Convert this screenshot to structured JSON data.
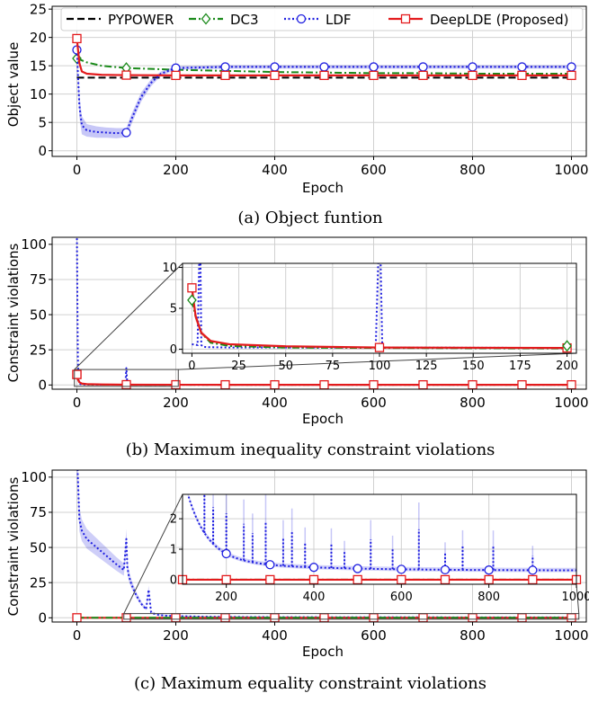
{
  "chart_data": [
    {
      "type": "line",
      "xlabel": "Epoch",
      "ylabel": "Object value",
      "xlim": [
        -50,
        1030
      ],
      "ylim": [
        -1,
        25.5
      ],
      "xticks": [
        0,
        200,
        400,
        600,
        800,
        1000
      ],
      "yticks": [
        0,
        5,
        10,
        15,
        20,
        25
      ],
      "grid": true,
      "legend_position": "top",
      "caption": "(a) Object funtion",
      "series": [
        {
          "name": "PYPOWER",
          "color": "#000000",
          "style": "dashed",
          "marker": "none",
          "x": [
            0,
            1000
          ],
          "y": [
            12.9,
            12.9
          ]
        },
        {
          "name": "DC3",
          "color": "#1a8a1a",
          "style": "dashdot",
          "marker": "diamond",
          "x": [
            0,
            20,
            50,
            100,
            200,
            300,
            400,
            500,
            600,
            700,
            800,
            900,
            1000
          ],
          "y": [
            16.3,
            15.6,
            15.0,
            14.6,
            14.3,
            14.1,
            13.9,
            13.8,
            13.7,
            13.7,
            13.6,
            13.6,
            13.6
          ]
        },
        {
          "name": "LDF",
          "color": "#1f1fe0",
          "style": "dotted",
          "marker": "circle",
          "x": [
            0,
            5,
            10,
            20,
            40,
            60,
            80,
            100,
            110,
            130,
            150,
            170,
            200,
            300,
            400,
            500,
            600,
            700,
            800,
            900,
            1000
          ],
          "y": [
            17.8,
            8.0,
            4.5,
            3.6,
            3.3,
            3.2,
            3.1,
            3.2,
            5.5,
            9.5,
            12.0,
            13.6,
            14.6,
            14.8,
            14.8,
            14.8,
            14.8,
            14.8,
            14.8,
            14.8,
            14.8
          ],
          "band": [
            0.9,
            2.0,
            1.6,
            1.1,
            1.0,
            0.9,
            0.9,
            0.8,
            0.9,
            0.8,
            0.6,
            0.4,
            0.3,
            0.3,
            0.3,
            0.3,
            0.3,
            0.3,
            0.3,
            0.3,
            0.3
          ]
        },
        {
          "name": "DeepLDE (Proposed)",
          "color": "#e31a1c",
          "style": "solid",
          "marker": "square",
          "x": [
            0,
            5,
            10,
            20,
            50,
            100,
            200,
            300,
            400,
            500,
            600,
            700,
            800,
            900,
            1000
          ],
          "y": [
            19.8,
            15.5,
            14.0,
            13.6,
            13.4,
            13.35,
            13.3,
            13.3,
            13.3,
            13.3,
            13.3,
            13.3,
            13.3,
            13.3,
            13.3
          ]
        }
      ]
    },
    {
      "type": "line",
      "xlabel": "Epoch",
      "ylabel": "Constraint violations",
      "xlim": [
        -50,
        1030
      ],
      "ylim": [
        -3,
        105
      ],
      "xticks": [
        0,
        200,
        400,
        600,
        800,
        1000
      ],
      "yticks": [
        0,
        25,
        50,
        75,
        100
      ],
      "grid": true,
      "caption": "(b) Maximum inequality constraint violations",
      "series": [
        {
          "name": "LDF",
          "color": "#1f1fe0",
          "style": "dotted",
          "x": [
            0,
            1,
            2,
            3,
            4,
            5,
            8,
            15,
            30,
            60,
            98,
            100,
            102,
            105,
            150,
            200,
            400,
            600,
            800,
            1000
          ],
          "y": [
            110,
            60,
            20,
            8,
            3,
            1,
            0.5,
            0.3,
            0.2,
            0.2,
            0.2,
            12,
            0.2,
            0.2,
            0.2,
            0.15,
            0.1,
            0.1,
            0.1,
            0.1
          ]
        },
        {
          "name": "DC3",
          "color": "#1a8a1a",
          "style": "dashdot",
          "x": [
            0,
            2,
            5,
            10,
            20,
            50,
            200,
            1000
          ],
          "y": [
            6.0,
            4.0,
            2.0,
            0.8,
            0.4,
            0.2,
            0.1,
            0.1
          ]
        },
        {
          "name": "DeepLDE (Proposed)",
          "color": "#e31a1c",
          "style": "solid",
          "x": [
            0,
            2,
            5,
            10,
            20,
            50,
            100,
            200,
            400,
            600,
            800,
            1000
          ],
          "y": [
            7.5,
            4.0,
            2.0,
            1.0,
            0.6,
            0.35,
            0.2,
            0.15,
            0.1,
            0.1,
            0.1,
            0.1
          ]
        }
      ],
      "inset": {
        "xlim": [
          -5,
          205
        ],
        "ylim": [
          -0.5,
          10.5
        ],
        "xticks": [
          0,
          25,
          50,
          75,
          100,
          125,
          150,
          175,
          200
        ],
        "yticks": [
          0,
          5,
          10
        ]
      }
    },
    {
      "type": "line",
      "xlabel": "Epoch",
      "ylabel": "Constraint violations",
      "xlim": [
        -50,
        1030
      ],
      "ylim": [
        -3,
        105
      ],
      "xticks": [
        0,
        200,
        400,
        600,
        800,
        1000
      ],
      "yticks": [
        0,
        25,
        50,
        75,
        100
      ],
      "grid": true,
      "caption": "(c) Maximum equality constraint violations",
      "series": [
        {
          "name": "LDF",
          "color": "#1f1fe0",
          "style": "dotted",
          "x": [
            0,
            5,
            10,
            20,
            40,
            60,
            80,
            95,
            100,
            102,
            105,
            110,
            120,
            130,
            140,
            145,
            150,
            155,
            165,
            180,
            200,
            250,
            300,
            400,
            600,
            800,
            1000
          ],
          "y": [
            120,
            70,
            62,
            56,
            50,
            44,
            38,
            34,
            56,
            36,
            30,
            24,
            16,
            10,
            6,
            20,
            4,
            3,
            2,
            1.5,
            1.2,
            0.8,
            0.6,
            0.45,
            0.35,
            0.3,
            0.3
          ]
        },
        {
          "name": "DeepLDE (Proposed)",
          "color": "#e31a1c",
          "style": "solid",
          "x": [
            0,
            1000
          ],
          "y": [
            0,
            0
          ]
        },
        {
          "name": "DC3",
          "color": "#1a8a1a",
          "style": "dashdot",
          "x": [
            0,
            1000
          ],
          "y": [
            0,
            0
          ]
        }
      ],
      "inset": {
        "xlim": [
          100,
          1000
        ],
        "ylim": [
          -0.15,
          2.8
        ],
        "xticks": [
          200,
          400,
          600,
          800,
          1000
        ],
        "yticks": [
          0,
          1,
          2
        ]
      }
    }
  ]
}
